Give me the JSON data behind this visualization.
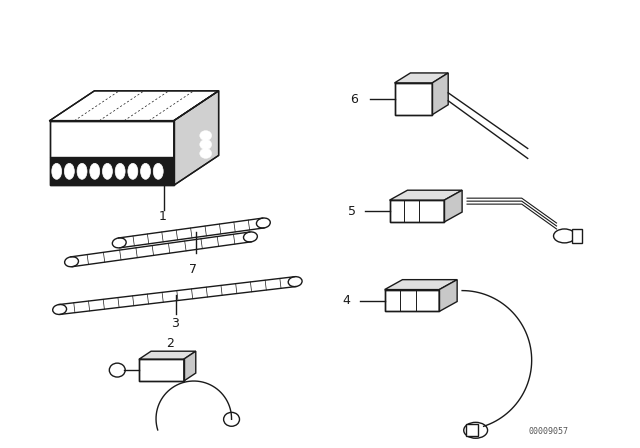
{
  "bg_color": "#ffffff",
  "line_color": "#1a1a1a",
  "part_number": "00009057",
  "figsize": [
    6.4,
    4.48
  ],
  "dpi": 100
}
